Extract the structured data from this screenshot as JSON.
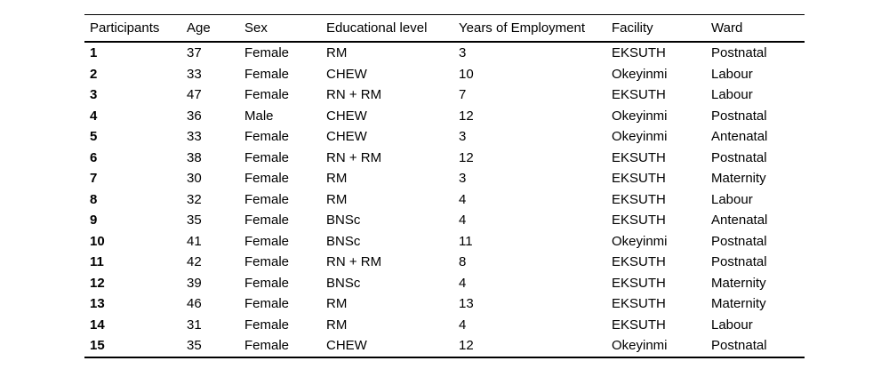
{
  "colors": {
    "background": "#ffffff",
    "text": "#000000",
    "rule": "#000000"
  },
  "table": {
    "columns": [
      "Participants",
      "Age",
      "Sex",
      "Educational level",
      "Years of Employment",
      "Facility",
      "Ward"
    ],
    "rows": [
      [
        "1",
        "37",
        "Female",
        "RM",
        "3",
        "EKSUTH",
        "Postnatal"
      ],
      [
        "2",
        "33",
        "Female",
        "CHEW",
        "10",
        "Okeyinmi",
        "Labour"
      ],
      [
        "3",
        "47",
        "Female",
        "RN + RM",
        "7",
        "EKSUTH",
        "Labour"
      ],
      [
        "4",
        "36",
        "Male",
        "CHEW",
        "12",
        "Okeyinmi",
        "Postnatal"
      ],
      [
        "5",
        "33",
        "Female",
        "CHEW",
        "3",
        "Okeyinmi",
        "Antenatal"
      ],
      [
        "6",
        "38",
        "Female",
        "RN + RM",
        "12",
        "EKSUTH",
        "Postnatal"
      ],
      [
        "7",
        "30",
        "Female",
        "RM",
        "3",
        "EKSUTH",
        "Maternity"
      ],
      [
        "8",
        "32",
        "Female",
        "RM",
        "4",
        "EKSUTH",
        "Labour"
      ],
      [
        "9",
        "35",
        "Female",
        "BNSc",
        "4",
        "EKSUTH",
        "Antenatal"
      ],
      [
        "10",
        "41",
        "Female",
        "BNSc",
        "11",
        "Okeyinmi",
        "Postnatal"
      ],
      [
        "11",
        "42",
        "Female",
        "RN + RM",
        "8",
        "EKSUTH",
        "Postnatal"
      ],
      [
        "12",
        "39",
        "Female",
        "BNSc",
        "4",
        "EKSUTH",
        "Maternity"
      ],
      [
        "13",
        "46",
        "Female",
        "RM",
        "13",
        "EKSUTH",
        "Maternity"
      ],
      [
        "14",
        "31",
        "Female",
        "RM",
        "4",
        "EKSUTH",
        "Labour"
      ],
      [
        "15",
        "35",
        "Female",
        "CHEW",
        "12",
        "Okeyinmi",
        "Postnatal"
      ]
    ]
  }
}
